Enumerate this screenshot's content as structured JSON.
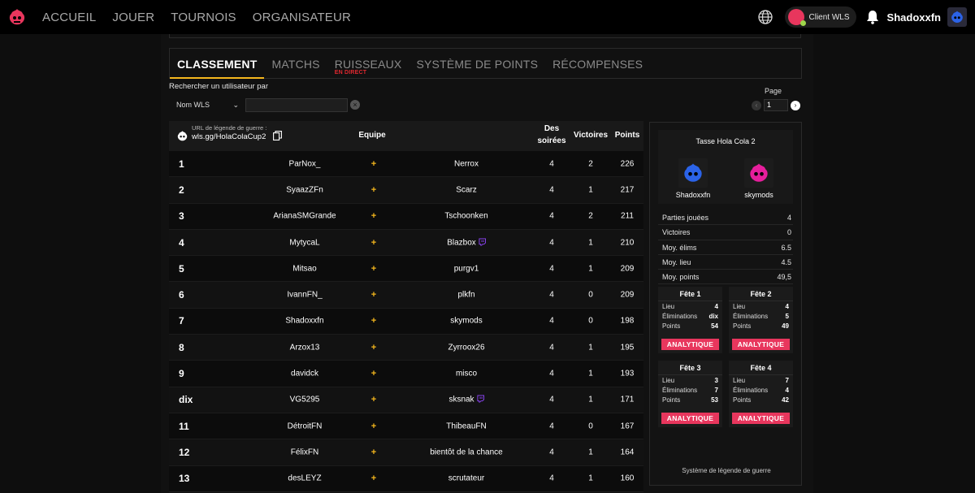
{
  "nav": {
    "items": [
      "ACCUEIL",
      "JOUER",
      "TOURNOIS",
      "ORGANISATEUR"
    ],
    "client_label": "Client WLS",
    "username": "Shadoxxfn"
  },
  "tabs": [
    {
      "label": "CLASSEMENT",
      "sub": ""
    },
    {
      "label": "MATCHS",
      "sub": ""
    },
    {
      "label": "RUISSEAUX",
      "sub": "EN DIRECT"
    },
    {
      "label": "SYSTÈME DE POINTS",
      "sub": ""
    },
    {
      "label": "RÉCOMPENSES",
      "sub": ""
    }
  ],
  "search": {
    "label": "Rechercher un utilisateur par",
    "select_value": "Nom WLS",
    "value": ""
  },
  "pagination": {
    "label": "Page",
    "current": "1"
  },
  "table": {
    "url_label": "URL de légende de guerre :",
    "url": "wls.gg/HolaColaCup2",
    "headers": {
      "team": "Equipe",
      "soirees_1": "Des",
      "soirees_2": "soirées",
      "wins": "Victoires",
      "points": "Points"
    },
    "rows": [
      {
        "rank": "1",
        "p1": "ParNox_",
        "p2": "Nerrox",
        "soirees": "4",
        "wins": "2",
        "points": "226",
        "twitch": false
      },
      {
        "rank": "2",
        "p1": "SyaazZFn",
        "p2": "Scarz",
        "soirees": "4",
        "wins": "1",
        "points": "217",
        "twitch": false
      },
      {
        "rank": "3",
        "p1": "ArianaSMGrande",
        "p2": "Tschoonken",
        "soirees": "4",
        "wins": "2",
        "points": "211",
        "twitch": false
      },
      {
        "rank": "4",
        "p1": "MytycaL",
        "p2": "Blazbox",
        "soirees": "4",
        "wins": "1",
        "points": "210",
        "twitch": true
      },
      {
        "rank": "5",
        "p1": "Mitsao",
        "p2": "purgv1",
        "soirees": "4",
        "wins": "1",
        "points": "209",
        "twitch": false
      },
      {
        "rank": "6",
        "p1": "IvannFN_",
        "p2": "plkfn",
        "soirees": "4",
        "wins": "0",
        "points": "209",
        "twitch": false
      },
      {
        "rank": "7",
        "p1": "Shadoxxfn",
        "p2": "skymods",
        "soirees": "4",
        "wins": "0",
        "points": "198",
        "twitch": false
      },
      {
        "rank": "8",
        "p1": "Arzox13",
        "p2": "Zyrroox26",
        "soirees": "4",
        "wins": "1",
        "points": "195",
        "twitch": false
      },
      {
        "rank": "9",
        "p1": "davidck",
        "p2": "misco",
        "soirees": "4",
        "wins": "1",
        "points": "193",
        "twitch": false
      },
      {
        "rank": "dix",
        "p1": "VG5295",
        "p2": "sksnak",
        "soirees": "4",
        "wins": "1",
        "points": "171",
        "twitch": true
      },
      {
        "rank": "11",
        "p1": "DétroitFN",
        "p2": "ThibeauFN",
        "soirees": "4",
        "wins": "0",
        "points": "167",
        "twitch": false
      },
      {
        "rank": "12",
        "p1": "FélixFN",
        "p2": "bientôt de la chance",
        "soirees": "4",
        "wins": "1",
        "points": "164",
        "twitch": false
      },
      {
        "rank": "13",
        "p1": "desLEYZ",
        "p2": "scrutateur",
        "soirees": "4",
        "wins": "1",
        "points": "160",
        "twitch": false
      }
    ],
    "plus_symbol": "+"
  },
  "panel": {
    "title": "Tasse Hola Cola 2",
    "player1": "Shadoxxfn",
    "player2": "skymods",
    "stats": [
      {
        "label": "Parties jouées",
        "value": "4"
      },
      {
        "label": "Victoires",
        "value": "0"
      },
      {
        "label": "Moy. élims",
        "value": "6.5"
      },
      {
        "label": "Moy. lieu",
        "value": "4.5"
      },
      {
        "label": "Moy. points",
        "value": "49,5"
      }
    ],
    "games": [
      {
        "title": "Fête 1",
        "lieu": "4",
        "elims": "dix",
        "points": "54"
      },
      {
        "title": "Fête 2",
        "lieu": "4",
        "elims": "5",
        "points": "49"
      },
      {
        "title": "Fête 3",
        "lieu": "3",
        "elims": "7",
        "points": "53"
      },
      {
        "title": "Fête 4",
        "lieu": "7",
        "elims": "4",
        "points": "42"
      }
    ],
    "game_labels": {
      "lieu": "Lieu",
      "elims": "Éliminations",
      "points": "Points",
      "button": "ANALYTIQUE"
    },
    "footer": "Système de légende de guerre"
  },
  "colors": {
    "accent_yellow": "#f5b71d",
    "brand_pink": "#e8365d",
    "live_red": "#e0282f",
    "twitch_purple": "#9146ff"
  }
}
